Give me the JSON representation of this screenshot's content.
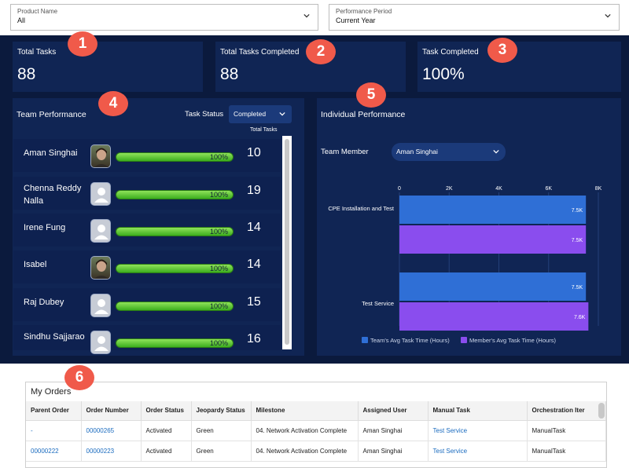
{
  "filters": {
    "product": {
      "label": "Product Name",
      "value": "All"
    },
    "period": {
      "label": "Performance Period",
      "value": "Current Year"
    }
  },
  "kpis": [
    {
      "title": "Total Tasks",
      "value": "88",
      "badge": "1"
    },
    {
      "title": "Total Tasks Completed",
      "value": "88",
      "badge": "2"
    },
    {
      "title": "Task Completed",
      "value": "100%",
      "badge": "3"
    }
  ],
  "team": {
    "title": "Team Performance",
    "badge": "4",
    "status_label": "Task Status",
    "status_value": "Completed",
    "total_header": "Total Tasks",
    "members": [
      {
        "name": "Aman Singhai",
        "percent_text": "100%",
        "progress": 1.0,
        "total": "10",
        "avatar": "photo"
      },
      {
        "name": "Chenna Reddy Nalla",
        "percent_text": "100%",
        "progress": 1.0,
        "total": "19",
        "avatar": "placeholder"
      },
      {
        "name": "Irene Fung",
        "percent_text": "100%",
        "progress": 1.0,
        "total": "14",
        "avatar": "placeholder"
      },
      {
        "name": "Isabel",
        "percent_text": "100%",
        "progress": 1.0,
        "total": "14",
        "avatar": "photo"
      },
      {
        "name": "Raj Dubey",
        "percent_text": "100%",
        "progress": 1.0,
        "total": "15",
        "avatar": "placeholder"
      },
      {
        "name": "Sindhu Sajjarao",
        "percent_text": "100%",
        "progress": 1.0,
        "total": "16",
        "avatar": "placeholder"
      }
    ]
  },
  "individual": {
    "title": "Individual Performance",
    "badge": "5",
    "member_label": "Team Member",
    "member_value": "Aman Singhai"
  },
  "chart_data": {
    "type": "bar",
    "orientation": "horizontal",
    "categories": [
      "CPE Installation and Test",
      "Test Service"
    ],
    "series": [
      {
        "name": "Team's Avg Task Time (Hours)",
        "values": [
          7500,
          7500
        ],
        "labels": [
          "7.5K",
          "7.5K"
        ],
        "color": "#2f6fd6"
      },
      {
        "name": "Member's Avg Task Time (Hours)",
        "values": [
          7500,
          7600
        ],
        "labels": [
          "7.5K",
          "7.6K"
        ],
        "color": "#8a4dee"
      }
    ],
    "x_ticks": [
      "0",
      "2K",
      "4K",
      "6K",
      "8K"
    ],
    "xlim": [
      0,
      8000
    ],
    "legend_position": "bottom"
  },
  "orders": {
    "title": "My Orders",
    "badge": "6",
    "columns": [
      "Parent Order",
      "Order Number",
      "Order Status",
      "Jeopardy Status",
      "Milestone",
      "Assigned User",
      "Manual Task",
      "Orchestration Iter"
    ],
    "rows": [
      [
        "-",
        "00000265",
        "Activated",
        "Green",
        "04. Network Activation Complete",
        "Aman Singhai",
        "Test Service",
        "ManualTask"
      ],
      [
        "00000222",
        "00000223",
        "Activated",
        "Green",
        "04. Network Activation Complete",
        "Aman Singhai",
        "Test Service",
        "ManualTask"
      ]
    ]
  }
}
